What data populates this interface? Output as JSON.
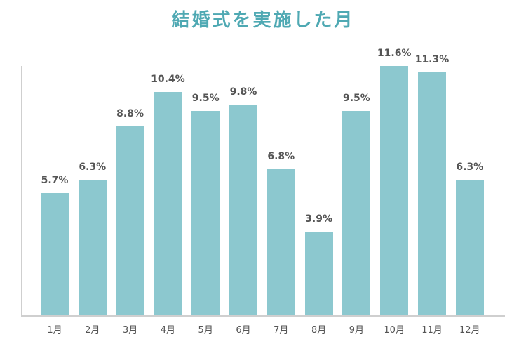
{
  "chart_data": {
    "type": "bar",
    "title": "結婚式を実施した月",
    "categories": [
      "1月",
      "2月",
      "3月",
      "4月",
      "5月",
      "6月",
      "7月",
      "8月",
      "9月",
      "10月",
      "11月",
      "12月"
    ],
    "values": [
      5.7,
      6.3,
      8.8,
      10.4,
      9.5,
      9.8,
      6.8,
      3.9,
      9.5,
      11.6,
      11.3,
      6.3
    ],
    "value_labels": [
      "5.7%",
      "6.3%",
      "8.8%",
      "10.4%",
      "9.5%",
      "9.8%",
      "6.8%",
      "3.9%",
      "9.5%",
      "11.6%",
      "11.3%",
      "6.3%"
    ],
    "xlabel": "",
    "ylabel": "",
    "ylim": [
      0,
      11.6
    ],
    "grid": false,
    "legend": null,
    "colors": {
      "bar": "#8cc8cf",
      "title": "#4fa9b3",
      "axis": "#cfcfcf",
      "label": "#555555"
    }
  }
}
